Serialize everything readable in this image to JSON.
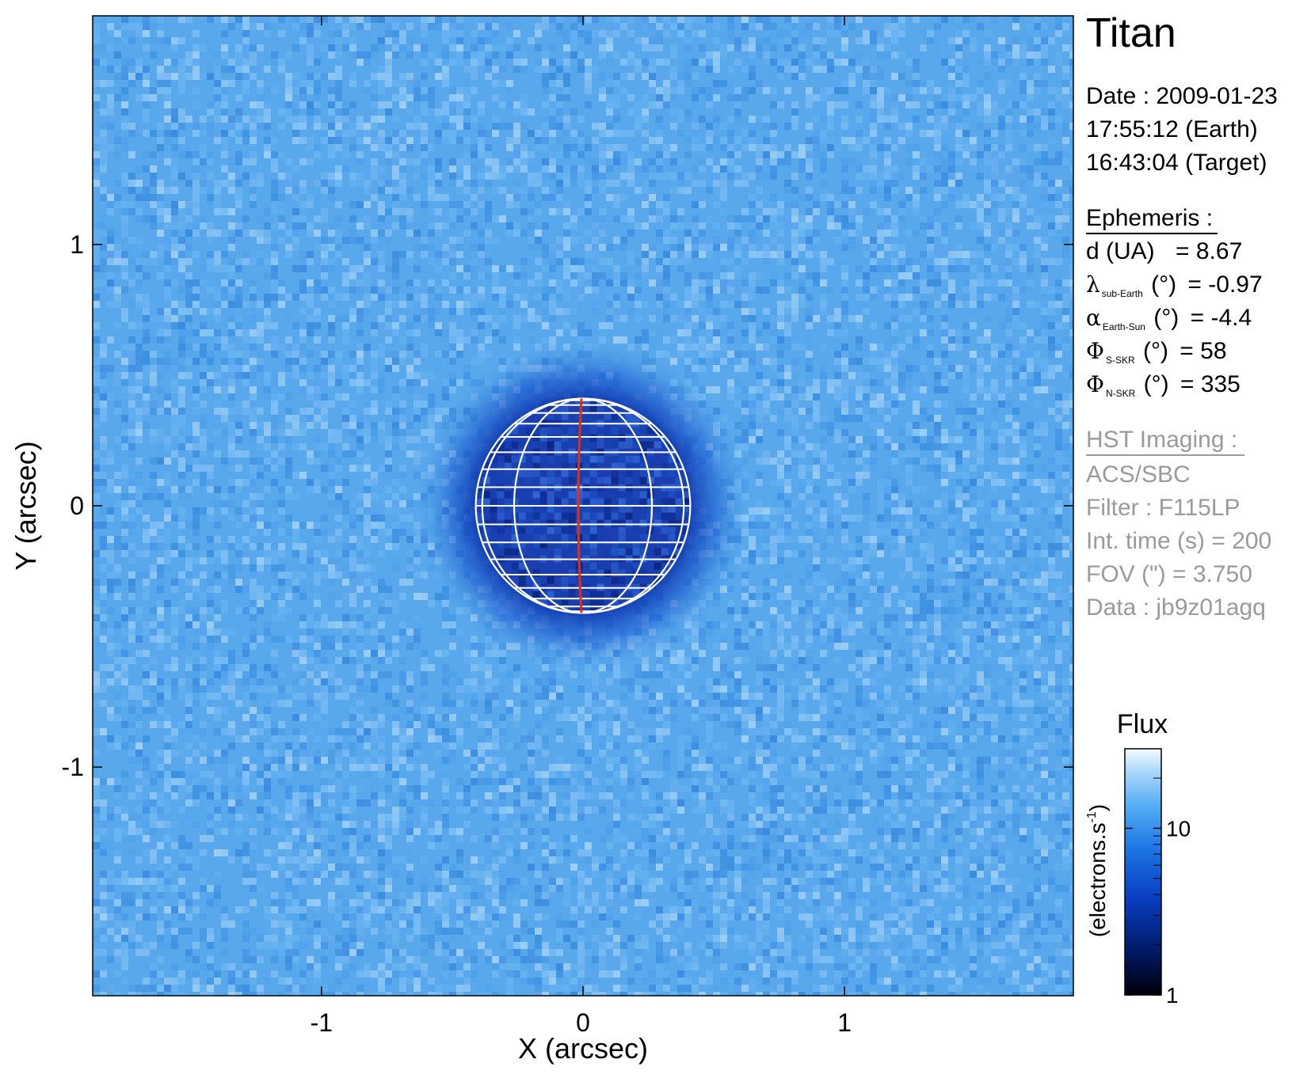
{
  "chart_data": {
    "type": "heatmap",
    "title": "",
    "xlabel": "X (arcsec)",
    "ylabel": "Y (arcsec)",
    "xlim": [
      -1.875,
      1.875
    ],
    "ylim": [
      -1.875,
      1.875
    ],
    "x_ticks": [
      {
        "value": -1,
        "label": "-1"
      },
      {
        "value": 0,
        "label": "0"
      },
      {
        "value": 1,
        "label": "1"
      }
    ],
    "y_ticks": [
      {
        "value": 1,
        "label": "1"
      },
      {
        "value": 0,
        "label": "0"
      },
      {
        "value": -1,
        "label": "-1"
      }
    ],
    "disk": {
      "center_x": 0,
      "center_y": 0,
      "radius_arcsec": 0.41
    },
    "background_color": "#5aa8ec",
    "disk_color": "#1a3fb0",
    "grid_color": "#ffffff",
    "meridian_color": "#e03010",
    "colorbar": {
      "title": "Flux",
      "unit_label": "(electrons.s",
      "unit_sup": "-1",
      "unit_close": ")",
      "scale": "log",
      "range": [
        1,
        30
      ],
      "ticks": [
        {
          "value": 10,
          "label": "10"
        },
        {
          "value": 1,
          "label": "1"
        }
      ],
      "colors": [
        "#00000a",
        "#001a66",
        "#0a3fc4",
        "#1e78e6",
        "#5ab0f5",
        "#b4dcfa",
        "#f5fbff"
      ]
    }
  },
  "info": {
    "target": "Titan",
    "date_line": "Date : 2009-01-23",
    "earth_time": "17:55:12 (Earth)",
    "target_time": "16:43:04 (Target)",
    "ephemeris_header": "Ephemeris :",
    "ephemeris": [
      {
        "symbol": "",
        "label": "d (UA)",
        "sub": "",
        "unit": "",
        "value": "= 8.67"
      },
      {
        "symbol": "λ",
        "label": "",
        "sub": "sub-Earth",
        "unit": "(°)",
        "value": "= -0.97"
      },
      {
        "symbol": "α",
        "label": "",
        "sub": "Earth-Sun",
        "unit": "(°)",
        "value": "= -4.4"
      },
      {
        "symbol": "Φ",
        "label": "",
        "sub": "S-SKR",
        "unit": "(°)",
        "value": "= 58"
      },
      {
        "symbol": "Φ",
        "label": "",
        "sub": "N-SKR",
        "unit": "(°)",
        "value": "= 335"
      }
    ],
    "hst_header": "HST Imaging :",
    "instrument": "ACS/SBC",
    "filter": "Filter : F115LP",
    "int_time": "Int. time (s) = 200",
    "fov": "FOV (\") = 3.750",
    "data_id": "Data : jb9z01agq"
  }
}
